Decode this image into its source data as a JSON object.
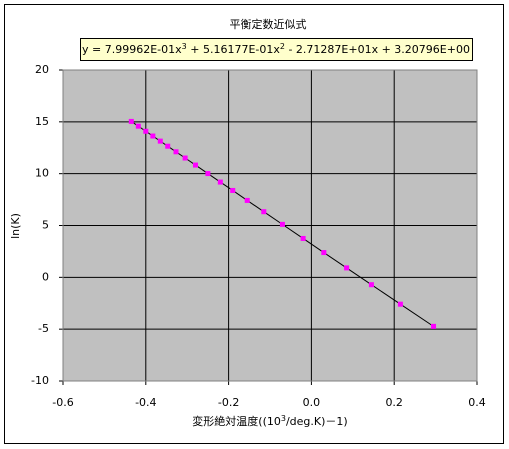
{
  "chart_data": {
    "type": "scatter",
    "title": "平衡定数近似式",
    "equation": [
      {
        "text": "y = 7.99962E-01x"
      },
      {
        "sup": "3"
      },
      {
        "text": " + 5.16177E-01x"
      },
      {
        "sup": "2"
      },
      {
        "text": " - 2.71287E+01x + 3.20796E+00"
      }
    ],
    "x_label": [
      {
        "text": "変形絶対温度((10"
      },
      {
        "sup": "3"
      },
      {
        "text": "/deg.K)－1)"
      }
    ],
    "y_label": "ln(K)",
    "xlim": [
      -0.6,
      0.4
    ],
    "ylim": [
      -10,
      20
    ],
    "xticks": [
      -0.6,
      -0.4,
      -0.2,
      {
        "value": 0,
        "label": "0.0"
      },
      0.2,
      0.4
    ],
    "yticks": [
      -10,
      -5,
      0,
      5,
      10,
      15,
      20
    ],
    "grid": true,
    "plot_background": "#c0c0c0",
    "line_color": "#000000",
    "marker_color": "#ff00ff",
    "series": [
      {
        "x": [
          -0.435,
          -0.418,
          -0.4,
          -0.383,
          -0.365,
          -0.347,
          -0.327,
          -0.305,
          -0.28,
          -0.25,
          -0.22,
          -0.19,
          -0.155,
          -0.115,
          -0.07,
          -0.02,
          0.03,
          0.085,
          0.145,
          0.215,
          0.295
        ],
        "values": [
          15.04,
          14.58,
          14.09,
          13.63,
          13.14,
          12.65,
          12.11,
          11.51,
          10.83,
          10.01,
          9.19,
          8.38,
          7.42,
          6.33,
          5.11,
          3.75,
          2.39,
          0.91,
          -0.71,
          -2.59,
          -4.73
        ]
      }
    ]
  }
}
